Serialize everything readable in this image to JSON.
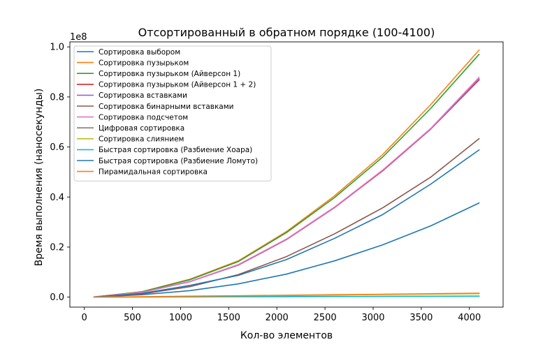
{
  "chart_data": {
    "type": "line",
    "title": "Отсортированный в обратном порядке (100-4100)",
    "xlabel": "Кол-во элементов",
    "ylabel": "Время выполнения (наносекунды)",
    "y_offset_label": "1e8",
    "xlim": [
      -150,
      4350
    ],
    "ylim": [
      -0.04,
      1.02
    ],
    "y_scale_note": "values in units of 1e8 nanoseconds",
    "x_ticks": [
      0,
      500,
      1000,
      1500,
      2000,
      2500,
      3000,
      3500,
      4000
    ],
    "x_tick_labels": [
      "0",
      "500",
      "1000",
      "1500",
      "2000",
      "2500",
      "3000",
      "3500",
      "4000"
    ],
    "y_ticks": [
      0.0,
      0.2,
      0.4,
      0.6,
      0.8,
      1.0
    ],
    "y_tick_labels": [
      "0.0",
      "0.2",
      "0.4",
      "0.6",
      "0.8",
      "1.0"
    ],
    "grid": false,
    "legend_position": "top-left",
    "x": [
      100,
      600,
      1100,
      1600,
      2100,
      2600,
      3100,
      3600,
      4100
    ],
    "series": [
      {
        "name": "Сортировка выбором",
        "color": "#1f77b4",
        "values": [
          0.0003,
          0.0095,
          0.026,
          0.053,
          0.092,
          0.145,
          0.209,
          0.285,
          0.376
        ]
      },
      {
        "name": "Сортировка пузырьком",
        "color": "#ff7f0e",
        "values": [
          0.0006,
          0.022,
          0.072,
          0.145,
          0.262,
          0.405,
          0.57,
          0.77,
          0.987
        ]
      },
      {
        "name": "Сортировка пузырьком (Айверсон 1)",
        "color": "#2ca02c",
        "values": [
          0.0006,
          0.021,
          0.07,
          0.142,
          0.258,
          0.398,
          0.56,
          0.755,
          0.97
        ]
      },
      {
        "name": "Сортировка пузырьком (Айверсон 1 + 2)",
        "color": "#d62728",
        "values": [
          0.0005,
          0.019,
          0.062,
          0.128,
          0.23,
          0.358,
          0.505,
          0.672,
          0.868
        ]
      },
      {
        "name": "Сортировка вставками",
        "color": "#9467bd",
        "values": [
          0.0005,
          0.019,
          0.063,
          0.129,
          0.231,
          0.359,
          0.507,
          0.673,
          0.872
        ]
      },
      {
        "name": "Сортировка бинарными вставками",
        "color": "#8c564b",
        "values": [
          0.0004,
          0.0125,
          0.042,
          0.09,
          0.162,
          0.253,
          0.357,
          0.48,
          0.633
        ]
      },
      {
        "name": "Сортировка подсчетом",
        "color": "#e377c2",
        "values": [
          0.0005,
          0.019,
          0.063,
          0.13,
          0.232,
          0.36,
          0.508,
          0.675,
          0.878
        ]
      },
      {
        "name": "Цифровая сортировка",
        "color": "#7f7f7f",
        "values": [
          0.0001,
          0.0006,
          0.0011,
          0.0016,
          0.0021,
          0.0026,
          0.0031,
          0.0036,
          0.0041
        ]
      },
      {
        "name": "Сортировка слиянием",
        "color": "#bcbd22",
        "values": [
          0.0001,
          0.0015,
          0.0031,
          0.0048,
          0.0066,
          0.0084,
          0.0102,
          0.0121,
          0.0139
        ]
      },
      {
        "name": "Быстрая сортировка (Разбиение Хоара)",
        "color": "#17becf",
        "values": [
          0.0001,
          0.0005,
          0.0009,
          0.0013,
          0.0018,
          0.0022,
          0.0026,
          0.0031,
          0.0035
        ]
      },
      {
        "name": "Быстрая сортировка (Разбиение Ломуто)",
        "color": "#1f77b4",
        "values": [
          0.0004,
          0.015,
          0.047,
          0.087,
          0.15,
          0.235,
          0.33,
          0.452,
          0.588
        ]
      },
      {
        "name": "Пирамидальная сортировка",
        "color": "#ff7f0e",
        "values": [
          0.0001,
          0.0018,
          0.0037,
          0.0056,
          0.0076,
          0.0096,
          0.0116,
          0.0137,
          0.0157
        ]
      }
    ]
  }
}
